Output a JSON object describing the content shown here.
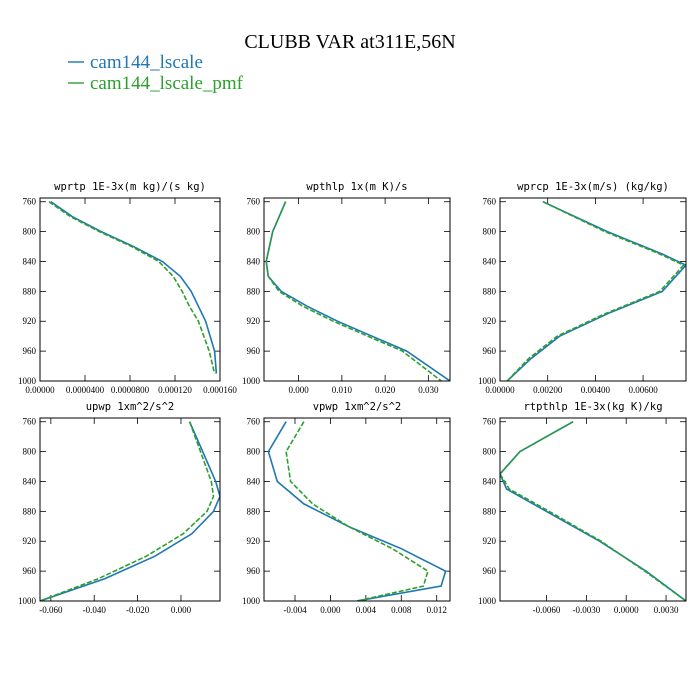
{
  "title": "CLUBB VAR at311E,56N",
  "colors": {
    "blue": "#1f77b4",
    "green": "#2ca02c"
  },
  "legend": [
    {
      "label": "cam144_lscale",
      "color": "#1f77b4",
      "dash": "solid"
    },
    {
      "label": "cam144_lscale_pmf",
      "color": "#2ca02c",
      "dash": "dashed"
    }
  ],
  "chart_data": [
    {
      "type": "line",
      "title": "wprtp  1E-3x(m kg)/(s kg)",
      "xlim": [
        0.0,
        1.0
      ],
      "ylim": [
        1000,
        755
      ],
      "yticks": [
        760,
        800,
        840,
        880,
        920,
        960,
        1000
      ],
      "xticks": [
        0.0,
        0.25,
        0.5,
        0.75,
        1.0
      ],
      "xticklabels": [
        "0.00000",
        "0.0000400",
        "0.0000800",
        "0.000120",
        "0.000160"
      ],
      "series": [
        {
          "name": "cam144_lscale",
          "color": "#1f77b4",
          "dash": "solid",
          "x": [
            0.06,
            0.18,
            0.34,
            0.52,
            0.68,
            0.78,
            0.84,
            0.88,
            0.92,
            0.97,
            0.98
          ],
          "y": [
            760,
            780,
            800,
            820,
            840,
            860,
            880,
            900,
            920,
            960,
            990
          ]
        },
        {
          "name": "cam144_lscale_pmf",
          "color": "#2ca02c",
          "dash": "dashed",
          "x": [
            0.05,
            0.17,
            0.33,
            0.51,
            0.66,
            0.74,
            0.79,
            0.83,
            0.88,
            0.94,
            0.97
          ],
          "y": [
            760,
            780,
            800,
            820,
            840,
            860,
            880,
            900,
            920,
            960,
            990
          ]
        }
      ]
    },
    {
      "type": "line",
      "title": "wpthlp  1x(m K)/s",
      "xlim": [
        -0.008,
        0.035
      ],
      "ylim": [
        1000,
        755
      ],
      "yticks": [
        760,
        800,
        840,
        880,
        920,
        960,
        1000
      ],
      "xticks": [
        0.0,
        0.01,
        0.02,
        0.03
      ],
      "xticklabels": [
        "0.000",
        "0.010",
        "0.020",
        "0.030"
      ],
      "series": [
        {
          "name": "cam144_lscale",
          "color": "#1f77b4",
          "dash": "solid",
          "x": [
            -0.003,
            -0.006,
            -0.0075,
            -0.007,
            -0.004,
            0.002,
            0.009,
            0.017,
            0.025,
            0.035
          ],
          "y": [
            760,
            800,
            840,
            860,
            880,
            900,
            920,
            940,
            960,
            1000
          ]
        },
        {
          "name": "cam144_lscale_pmf",
          "color": "#2ca02c",
          "dash": "dashed",
          "x": [
            -0.003,
            -0.006,
            -0.0075,
            -0.007,
            -0.0045,
            0.001,
            0.008,
            0.016,
            0.024,
            0.033
          ],
          "y": [
            760,
            800,
            840,
            860,
            880,
            900,
            920,
            940,
            960,
            1000
          ]
        }
      ]
    },
    {
      "type": "line",
      "title": "wprcp  1E-3x(m/s) (kg/kg)",
      "xlim": [
        0.0,
        0.0078
      ],
      "ylim": [
        1000,
        755
      ],
      "yticks": [
        760,
        800,
        840,
        880,
        920,
        960,
        1000
      ],
      "xticks": [
        0.0,
        0.002,
        0.004,
        0.006
      ],
      "xticklabels": [
        "0.00000",
        "0.00200",
        "0.00400",
        "0.00600"
      ],
      "series": [
        {
          "name": "cam144_lscale",
          "color": "#1f77b4",
          "dash": "solid",
          "x": [
            0.0018,
            0.0045,
            0.0068,
            0.0078,
            0.0068,
            0.0045,
            0.0025,
            0.0013,
            0.0003
          ],
          "y": [
            760,
            800,
            830,
            845,
            880,
            910,
            940,
            970,
            1000
          ]
        },
        {
          "name": "cam144_lscale_pmf",
          "color": "#2ca02c",
          "dash": "dashed",
          "x": [
            0.0018,
            0.0044,
            0.0067,
            0.0077,
            0.0067,
            0.0044,
            0.0024,
            0.0012,
            0.0003
          ],
          "y": [
            760,
            800,
            830,
            845,
            880,
            910,
            940,
            970,
            1000
          ]
        }
      ]
    },
    {
      "type": "line",
      "title": "upwp  1xm^2/s^2",
      "xlim": [
        -0.065,
        0.018
      ],
      "ylim": [
        1000,
        755
      ],
      "yticks": [
        760,
        800,
        840,
        880,
        920,
        960,
        1000
      ],
      "xticks": [
        -0.06,
        -0.04,
        -0.02,
        0.0
      ],
      "xticklabels": [
        "-0.060",
        "-0.040",
        "-0.020",
        "0.000"
      ],
      "series": [
        {
          "name": "cam144_lscale",
          "color": "#1f77b4",
          "dash": "solid",
          "x": [
            0.004,
            0.01,
            0.016,
            0.018,
            0.015,
            0.005,
            -0.012,
            -0.035,
            -0.065
          ],
          "y": [
            760,
            800,
            840,
            860,
            880,
            910,
            940,
            970,
            1000
          ]
        },
        {
          "name": "cam144_lscale_pmf",
          "color": "#2ca02c",
          "dash": "dashed",
          "x": [
            0.004,
            0.009,
            0.014,
            0.015,
            0.012,
            0.001,
            -0.016,
            -0.038,
            -0.065
          ],
          "y": [
            760,
            800,
            840,
            860,
            880,
            910,
            940,
            970,
            1000
          ]
        }
      ]
    },
    {
      "type": "line",
      "title": "vpwp  1xm^2/s^2",
      "xlim": [
        -0.0075,
        0.0135
      ],
      "ylim": [
        1000,
        755
      ],
      "yticks": [
        760,
        800,
        840,
        880,
        920,
        960,
        1000
      ],
      "xticks": [
        -0.004,
        0.0,
        0.004,
        0.008,
        0.012
      ],
      "xticklabels": [
        "-0.004",
        "0.000",
        "0.004",
        "0.008",
        "0.012"
      ],
      "series": [
        {
          "name": "cam144_lscale",
          "color": "#1f77b4",
          "dash": "solid",
          "x": [
            -0.005,
            -0.007,
            -0.006,
            -0.003,
            0.002,
            0.008,
            0.013,
            0.0125,
            0.003
          ],
          "y": [
            760,
            800,
            840,
            870,
            900,
            930,
            960,
            980,
            1000
          ]
        },
        {
          "name": "cam144_lscale_pmf",
          "color": "#2ca02c",
          "dash": "dashed",
          "x": [
            -0.003,
            -0.005,
            -0.0045,
            -0.002,
            0.002,
            0.007,
            0.011,
            0.0105,
            0.003
          ],
          "y": [
            760,
            800,
            840,
            870,
            900,
            930,
            960,
            980,
            1000
          ]
        }
      ]
    },
    {
      "type": "line",
      "title": "rtpthlp  1E-3x(kg K)/kg",
      "xlim": [
        -0.0095,
        0.0045
      ],
      "ylim": [
        1000,
        755
      ],
      "yticks": [
        760,
        800,
        840,
        880,
        920,
        960,
        1000
      ],
      "xticks": [
        -0.006,
        -0.003,
        0.0,
        0.003
      ],
      "xticklabels": [
        "-0.0060",
        "-0.0030",
        "0.0000",
        "0.0030"
      ],
      "series": [
        {
          "name": "cam144_lscale",
          "color": "#1f77b4",
          "dash": "solid",
          "x": [
            -0.004,
            -0.008,
            -0.0095,
            -0.009,
            -0.006,
            -0.002,
            0.0015,
            0.0045
          ],
          "y": [
            760,
            800,
            830,
            850,
            880,
            920,
            960,
            1000
          ]
        },
        {
          "name": "cam144_lscale_pmf",
          "color": "#2ca02c",
          "dash": "dashed",
          "x": [
            -0.004,
            -0.008,
            -0.0095,
            -0.0088,
            -0.0058,
            -0.0019,
            0.0014,
            0.0045
          ],
          "y": [
            760,
            800,
            830,
            850,
            880,
            920,
            960,
            1000
          ]
        }
      ]
    }
  ]
}
